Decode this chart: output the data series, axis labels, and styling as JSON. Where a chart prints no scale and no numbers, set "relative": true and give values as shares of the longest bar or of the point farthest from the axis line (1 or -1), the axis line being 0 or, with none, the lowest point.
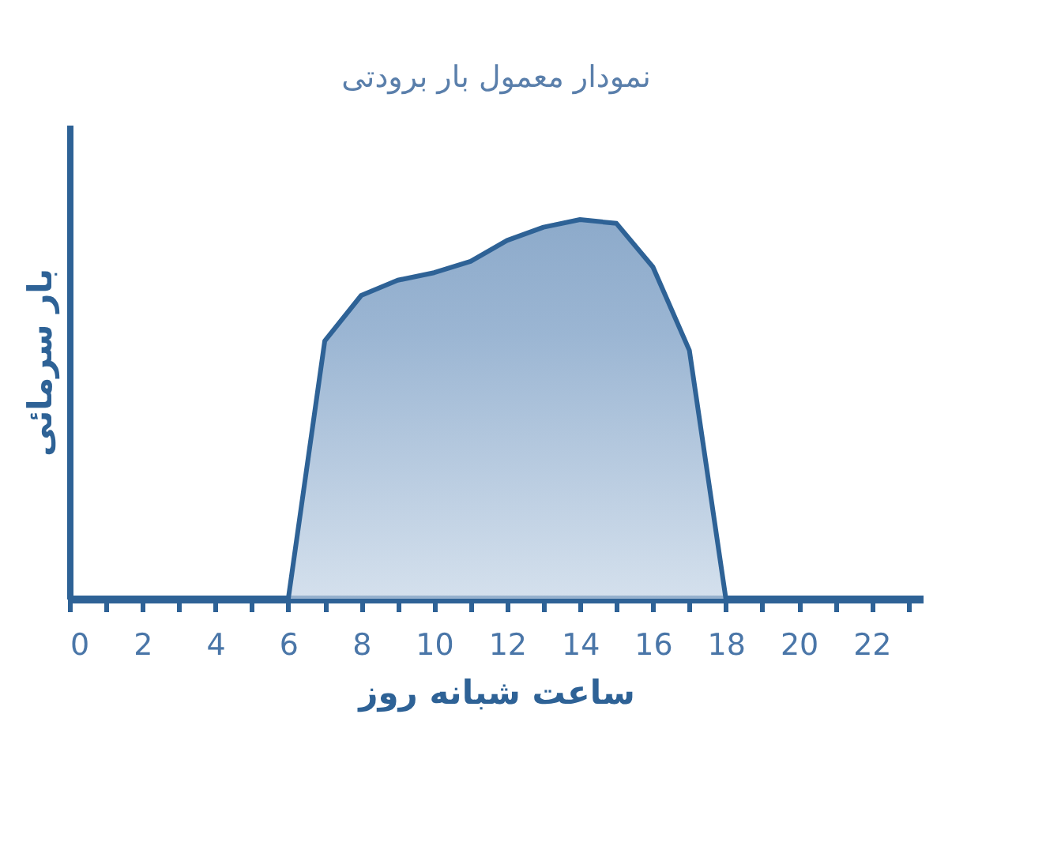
{
  "chart_data": {
    "type": "area",
    "title": "نمودار معمول بار برودتی",
    "xlabel": "ساعت شبانه روز",
    "ylabel": "بار سرمائی",
    "x": [
      6,
      7,
      8,
      9,
      10,
      11,
      12,
      13,
      14,
      15,
      16,
      17,
      18
    ],
    "series": [
      {
        "color": "#7096c0",
        "values": [
          0,
          0.68,
          0.8,
          0.84,
          0.86,
          0.89,
          0.945,
          0.98,
          1.0,
          0.99,
          0.875,
          0.655,
          0
        ]
      }
    ],
    "relative": true,
    "xlim": [
      0,
      23.4
    ],
    "xticks": [
      0,
      {
        "value": 1,
        "label": null
      },
      2,
      {
        "value": 3,
        "label": null
      },
      4,
      {
        "value": 5,
        "label": null
      },
      6,
      {
        "value": 7,
        "label": null
      },
      8,
      {
        "value": 9,
        "label": null
      },
      10,
      {
        "value": 11,
        "label": null
      },
      12,
      {
        "value": 13,
        "label": null
      },
      14,
      {
        "value": 15,
        "label": null
      },
      16,
      {
        "value": 17,
        "label": null
      },
      18,
      {
        "value": 19,
        "label": null
      },
      20,
      {
        "value": 21,
        "label": null
      },
      22,
      {
        "value": 23,
        "label": null
      }
    ],
    "grid": false
  }
}
